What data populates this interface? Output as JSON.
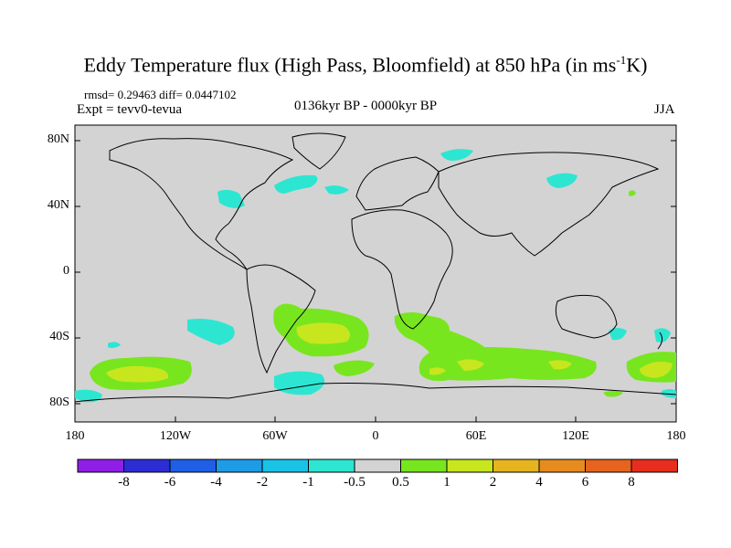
{
  "map": {
    "title": "Eddy Temperature flux (High Pass, Bloomfield) at 850 hPa (in ms",
    "title_sup": "-1",
    "title_end": "K)",
    "rmsd_line": "rmsd= 0.29463 diff= 0.0447102",
    "expt_line": "Expt = tevv0-tevua",
    "period": "0136kyr BP - 0000kyr BP",
    "season": "JJA",
    "lat_labels": [
      "80N",
      "40N",
      "0",
      "40S",
      "80S"
    ],
    "lon_labels": [
      "180",
      "120W",
      "60W",
      "0",
      "60E",
      "120E",
      "180"
    ],
    "background_color": "#d3d3d3",
    "colorbar": {
      "labels": [
        "-8",
        "-6",
        "-4",
        "-2",
        "-1",
        "-0.5",
        "0.5",
        "1",
        "2",
        "4",
        "6",
        "8"
      ],
      "colors": [
        "#8f1ee6",
        "#2d2dd6",
        "#1e5fe6",
        "#1e9be6",
        "#19c3e6",
        "#2de6d2",
        "#d3d3d3",
        "#78e61e",
        "#c8e61e",
        "#e6b41e",
        "#e68c1e",
        "#e6641e",
        "#e62d1e"
      ]
    }
  }
}
